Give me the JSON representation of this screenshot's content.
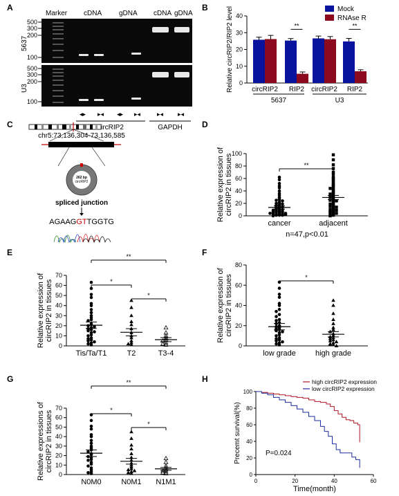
{
  "panels": {
    "A": {
      "label": "A",
      "gel_header": [
        "Marker",
        "cDNA",
        "gDNA",
        "cDNA",
        "gDNA"
      ],
      "row_labels": [
        "5637",
        "U3"
      ],
      "size_marks": [
        "500",
        "300",
        "200",
        "100"
      ],
      "bracket_left": "circRIP2",
      "bracket_right": "GAPDH"
    },
    "B": {
      "label": "B",
      "ylabel": "Relative circRIP2/RIP2 level",
      "legend": [
        "Mock",
        "RNAse R"
      ],
      "sig": [
        "**",
        "**"
      ],
      "group_labels": [
        "5637",
        "U3"
      ]
    },
    "C": {
      "label": "C",
      "coord": "chr5:73,136,304-73,136,585",
      "circle_text_1": "262 bp",
      "circle_text_2": "circRIP2",
      "junction_label": "spliced junction",
      "seq_left": "AGAAG",
      "seq_mid": "GT",
      "seq_right": "TGGTG"
    },
    "D": {
      "label": "D",
      "ylabel": "Relative expression of circRIP2 in tissues",
      "sig": "**",
      "stat": "n=47,p<0.01"
    },
    "E": {
      "label": "E",
      "ylabel": "Relative expression of circRIP2 in tissues",
      "sig": [
        "**",
        "*",
        "*"
      ]
    },
    "F": {
      "label": "F",
      "ylabel": "Relative expression of circRIP2 in tissues",
      "sig": "*"
    },
    "G": {
      "label": "G",
      "ylabel": "Relative expressions of circRIP2 in tissues",
      "sig": [
        "**",
        "*",
        "*"
      ]
    },
    "H": {
      "label": "H",
      "ylabel": "Precemt survival(%)",
      "xlabel": "Time(month)",
      "pval": "P=0.024",
      "legend": [
        "high circRIP2 expression",
        "low circRIP2 expression"
      ]
    }
  },
  "chart_data": [
    {
      "panel": "B",
      "type": "bar",
      "categories": [
        "circRIP2",
        "RIP2",
        "circRIP2",
        "RIP2"
      ],
      "series": [
        {
          "name": "Mock",
          "values": [
            25.8,
            25.3,
            26.6,
            24.8
          ],
          "err": [
            1.5,
            1.2,
            1.4,
            1.8
          ],
          "color": "#0a139e"
        },
        {
          "name": "RNAse R",
          "values": [
            26.2,
            5.5,
            26.1,
            7.0
          ],
          "err": [
            2.2,
            1.1,
            1.6,
            0.9
          ],
          "color": "#8b0a1e"
        }
      ],
      "ylim": [
        0,
        40
      ],
      "yticks": [
        0,
        10,
        20,
        30,
        40
      ],
      "ylabel": "Relative circRIP2/RIP2 level"
    },
    {
      "panel": "D",
      "type": "scatter",
      "categories": [
        "cancer",
        "adjacent"
      ],
      "markers": [
        "circle",
        "square"
      ],
      "means": [
        13.5,
        29.5
      ],
      "sem": [
        2.5,
        3.3
      ],
      "points": [
        [
          62,
          58,
          52,
          48,
          45,
          40,
          36,
          33,
          30,
          28,
          26,
          25,
          24,
          22,
          21,
          20,
          19,
          18,
          17,
          16,
          15,
          14,
          13,
          12,
          11,
          10,
          10,
          9,
          8,
          8,
          7,
          7,
          6,
          6,
          5,
          5,
          4,
          4,
          3,
          3,
          2,
          2,
          2,
          1,
          1,
          1,
          0
        ],
        [
          98,
          90,
          82,
          76,
          70,
          67,
          62,
          60,
          58,
          55,
          52,
          50,
          48,
          46,
          44,
          42,
          40,
          38,
          36,
          35,
          33,
          31,
          30,
          28,
          26,
          25,
          24,
          22,
          20,
          19,
          18,
          16,
          15,
          14,
          12,
          11,
          10,
          9,
          8,
          7,
          6,
          5,
          4,
          3,
          2,
          1,
          0
        ]
      ],
      "ylim": [
        0,
        100
      ],
      "yticks": [
        0,
        20,
        40,
        60,
        80,
        100
      ],
      "ylabel": "Relative expression of circRIP2 in tissues"
    },
    {
      "panel": "E",
      "type": "scatter",
      "categories": [
        "Tis/Ta/T1",
        "T2",
        "T3-4"
      ],
      "markers": [
        "circle",
        "triangle",
        "triangle-open"
      ],
      "means": [
        20.5,
        13.5,
        6.2
      ],
      "sem": [
        3.2,
        3.6,
        2.0
      ],
      "points": [
        [
          63,
          57,
          51,
          48,
          42,
          40,
          36,
          33,
          30,
          28,
          26,
          25,
          22,
          21,
          20,
          19,
          18,
          17,
          16,
          15,
          14,
          13,
          11,
          10,
          8,
          7,
          6,
          5,
          4,
          3,
          2,
          1
        ],
        [
          45,
          38,
          30,
          24,
          21,
          17,
          13,
          10,
          8,
          5,
          3,
          2,
          1
        ],
        [
          18,
          13,
          10,
          8,
          6,
          5,
          3,
          2,
          1
        ]
      ],
      "ylim": [
        0,
        70
      ],
      "yticks": [
        0,
        10,
        20,
        30,
        40,
        50,
        60,
        70
      ],
      "ylabel": "Relative expression of circRIP2 in tissues"
    },
    {
      "panel": "F",
      "type": "scatter",
      "categories": [
        "low grade",
        "high grade"
      ],
      "markers": [
        "circle",
        "triangle"
      ],
      "means": [
        19.0,
        11.5
      ],
      "sem": [
        3.2,
        2.6
      ],
      "points": [
        [
          63,
          57,
          51,
          48,
          42,
          40,
          36,
          34,
          31,
          29,
          26,
          25,
          23,
          22,
          20,
          19,
          18,
          17,
          16,
          15,
          14,
          13,
          11,
          10,
          8,
          7,
          6,
          5,
          4,
          3,
          2,
          1
        ],
        [
          45,
          40,
          32,
          26,
          22,
          18,
          16,
          14,
          12,
          10,
          9,
          8,
          7,
          6,
          5,
          4,
          3,
          2,
          1,
          1,
          0
        ]
      ],
      "ylim": [
        0,
        80
      ],
      "yticks": [
        0,
        20,
        40,
        60,
        80
      ],
      "ylabel": "Relative expression of circRIP2 in tissues"
    },
    {
      "panel": "G",
      "type": "scatter",
      "categories": [
        "N0M0",
        "N0M1",
        "N1M1"
      ],
      "markers": [
        "circle",
        "triangle",
        "triangle-open"
      ],
      "means": [
        22.5,
        14.0,
        6.0
      ],
      "sem": [
        3.5,
        3.0,
        1.5
      ],
      "points": [
        [
          63,
          57,
          51,
          48,
          42,
          40,
          36,
          33,
          30,
          28,
          26,
          24,
          22,
          21,
          19,
          18,
          16,
          15,
          13,
          11,
          9,
          7,
          5,
          3,
          2,
          1
        ],
        [
          45,
          38,
          31,
          27,
          22,
          18,
          15,
          12,
          10,
          8,
          6,
          5,
          4,
          3,
          2,
          1
        ],
        [
          17,
          13,
          9,
          7,
          5,
          4,
          3,
          2,
          1
        ]
      ],
      "ylim": [
        0,
        70
      ],
      "yticks": [
        0,
        10,
        20,
        30,
        40,
        50,
        60,
        70
      ],
      "ylabel": "Relative expressions of circRIP2 in tissues"
    },
    {
      "panel": "H",
      "type": "line",
      "series": [
        {
          "name": "high circRIP2 expression",
          "color": "#b01020",
          "x": [
            0,
            3,
            6,
            9,
            12,
            15,
            18,
            21,
            24,
            27,
            30,
            33,
            36,
            38,
            40,
            42,
            44,
            46,
            48,
            50,
            52,
            53,
            53
          ],
          "y": [
            100,
            99,
            98,
            97,
            96,
            95,
            94,
            93,
            92,
            90,
            88,
            87,
            85,
            82,
            77,
            73,
            69,
            66,
            65,
            62,
            60,
            50,
            39
          ]
        },
        {
          "name": "low circRIP2 expression",
          "color": "#1a2aa0",
          "x": [
            0,
            3,
            6,
            9,
            12,
            15,
            18,
            21,
            24,
            27,
            30,
            33,
            35,
            37,
            39,
            41,
            43,
            46,
            49,
            51,
            53,
            53
          ],
          "y": [
            100,
            98,
            96,
            93,
            90,
            87,
            83,
            79,
            75,
            70,
            65,
            58,
            52,
            46,
            37,
            30,
            26,
            26,
            21,
            18,
            14,
            8
          ]
        }
      ],
      "xlim": [
        0,
        60
      ],
      "ylim": [
        0,
        100
      ],
      "xticks": [
        0,
        20,
        40,
        60
      ],
      "yticks": [
        0,
        20,
        40,
        60,
        80,
        100
      ],
      "xlabel": "Time(month)",
      "ylabel": "Precemt survival(%)"
    }
  ]
}
